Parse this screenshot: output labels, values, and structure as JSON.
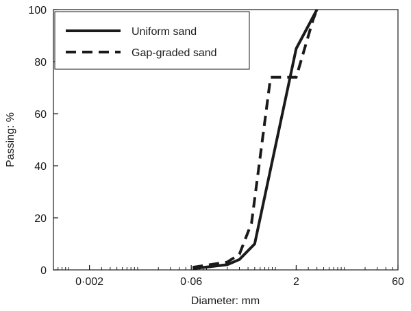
{
  "chart_data": {
    "type": "line",
    "xlabel": "Diameter: mm",
    "ylabel": "Passing: %",
    "x_scale": "log",
    "xlim": [
      0.0006,
      60
    ],
    "ylim": [
      0,
      100
    ],
    "x_ticks": [
      {
        "value": 0.002,
        "label": "0·002"
      },
      {
        "value": 0.06,
        "label": "0·06"
      },
      {
        "value": 2,
        "label": "2"
      },
      {
        "value": 60,
        "label": "60"
      }
    ],
    "y_ticks": [
      0,
      20,
      40,
      60,
      80,
      100
    ],
    "grid": false,
    "legend_position": "top-left",
    "series": [
      {
        "name": "Uniform sand",
        "style": "solid",
        "color": "#1a1a1a",
        "points": [
          [
            0.063,
            0.5
          ],
          [
            0.2,
            2
          ],
          [
            0.3,
            4
          ],
          [
            0.5,
            10
          ],
          [
            2,
            85
          ],
          [
            4,
            100
          ]
        ]
      },
      {
        "name": "Gap-graded sand",
        "style": "dashed",
        "color": "#1a1a1a",
        "points": [
          [
            0.063,
            1
          ],
          [
            0.2,
            3
          ],
          [
            0.3,
            6
          ],
          [
            0.45,
            18
          ],
          [
            0.85,
            74
          ],
          [
            2,
            74
          ],
          [
            3.5,
            96
          ],
          [
            4,
            100
          ]
        ]
      }
    ]
  }
}
